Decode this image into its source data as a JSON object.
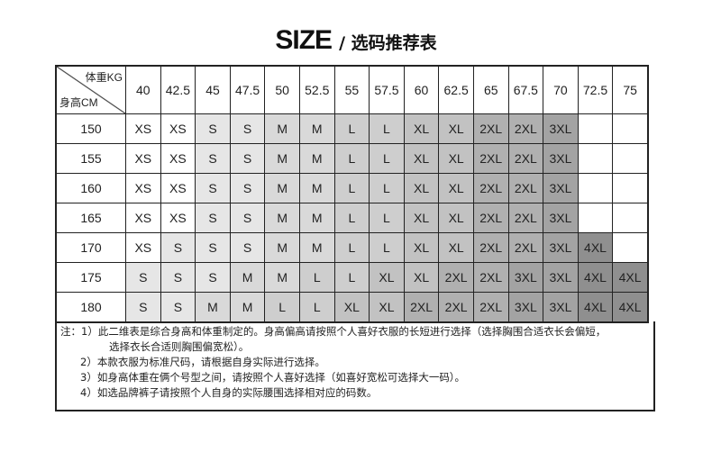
{
  "title": {
    "main": "SIZE",
    "sub": "/ 选码推荐表"
  },
  "header": {
    "weight_label": "体重KG",
    "height_label": "身高CM"
  },
  "weights": [
    "40",
    "42.5",
    "45",
    "47.5",
    "50",
    "52.5",
    "55",
    "57.5",
    "60",
    "62.5",
    "65",
    "67.5",
    "70",
    "72.5",
    "75"
  ],
  "rows": [
    {
      "height": "150",
      "sizes": [
        "XS",
        "XS",
        "S",
        "S",
        "M",
        "M",
        "L",
        "L",
        "XL",
        "XL",
        "2XL",
        "2XL",
        "3XL",
        "",
        ""
      ]
    },
    {
      "height": "155",
      "sizes": [
        "XS",
        "XS",
        "S",
        "S",
        "M",
        "M",
        "L",
        "L",
        "XL",
        "XL",
        "2XL",
        "2XL",
        "3XL",
        "",
        ""
      ]
    },
    {
      "height": "160",
      "sizes": [
        "XS",
        "XS",
        "S",
        "S",
        "M",
        "M",
        "L",
        "L",
        "XL",
        "XL",
        "2XL",
        "2XL",
        "3XL",
        "",
        ""
      ]
    },
    {
      "height": "165",
      "sizes": [
        "XS",
        "XS",
        "S",
        "S",
        "M",
        "M",
        "L",
        "L",
        "XL",
        "XL",
        "2XL",
        "2XL",
        "3XL",
        "",
        ""
      ]
    },
    {
      "height": "170",
      "sizes": [
        "XS",
        "S",
        "S",
        "S",
        "M",
        "M",
        "L",
        "L",
        "XL",
        "XL",
        "2XL",
        "2XL",
        "3XL",
        "4XL",
        ""
      ]
    },
    {
      "height": "175",
      "sizes": [
        "S",
        "S",
        "S",
        "M",
        "M",
        "L",
        "L",
        "XL",
        "XL",
        "2XL",
        "2XL",
        "3XL",
        "3XL",
        "4XL",
        "4XL"
      ]
    },
    {
      "height": "180",
      "sizes": [
        "S",
        "S",
        "M",
        "M",
        "L",
        "L",
        "XL",
        "XL",
        "2XL",
        "2XL",
        "2XL",
        "3XL",
        "3XL",
        "4XL",
        "4XL"
      ]
    }
  ],
  "size_colors": {
    "XS": "#ffffff",
    "S": "#e6e6e6",
    "M": "#d9d9d9",
    "L": "#cecece",
    "XL": "#c2c2c2",
    "2XL": "#b0b0b0",
    "3XL": "#a3a3a3",
    "4XL": "#8f8f8f",
    "": "#ffffff"
  },
  "notes": [
    "注：1）此二维表是综合身高和体重制定的。身高偏高请按照个人喜好衣服的长短进行选择（选择胸围合适衣长会偏短，",
    "选择衣长合适则胸围偏宽松）。",
    "2）本款衣服为标准尺码，请根据自身实际进行选择。",
    "3）如身高体重在俩个号型之间，请按照个人喜好选择（如喜好宽松可选择大一码）。",
    "4）如选品牌裤子请按照个人自身的实际腰围选择相对应的码数。"
  ]
}
